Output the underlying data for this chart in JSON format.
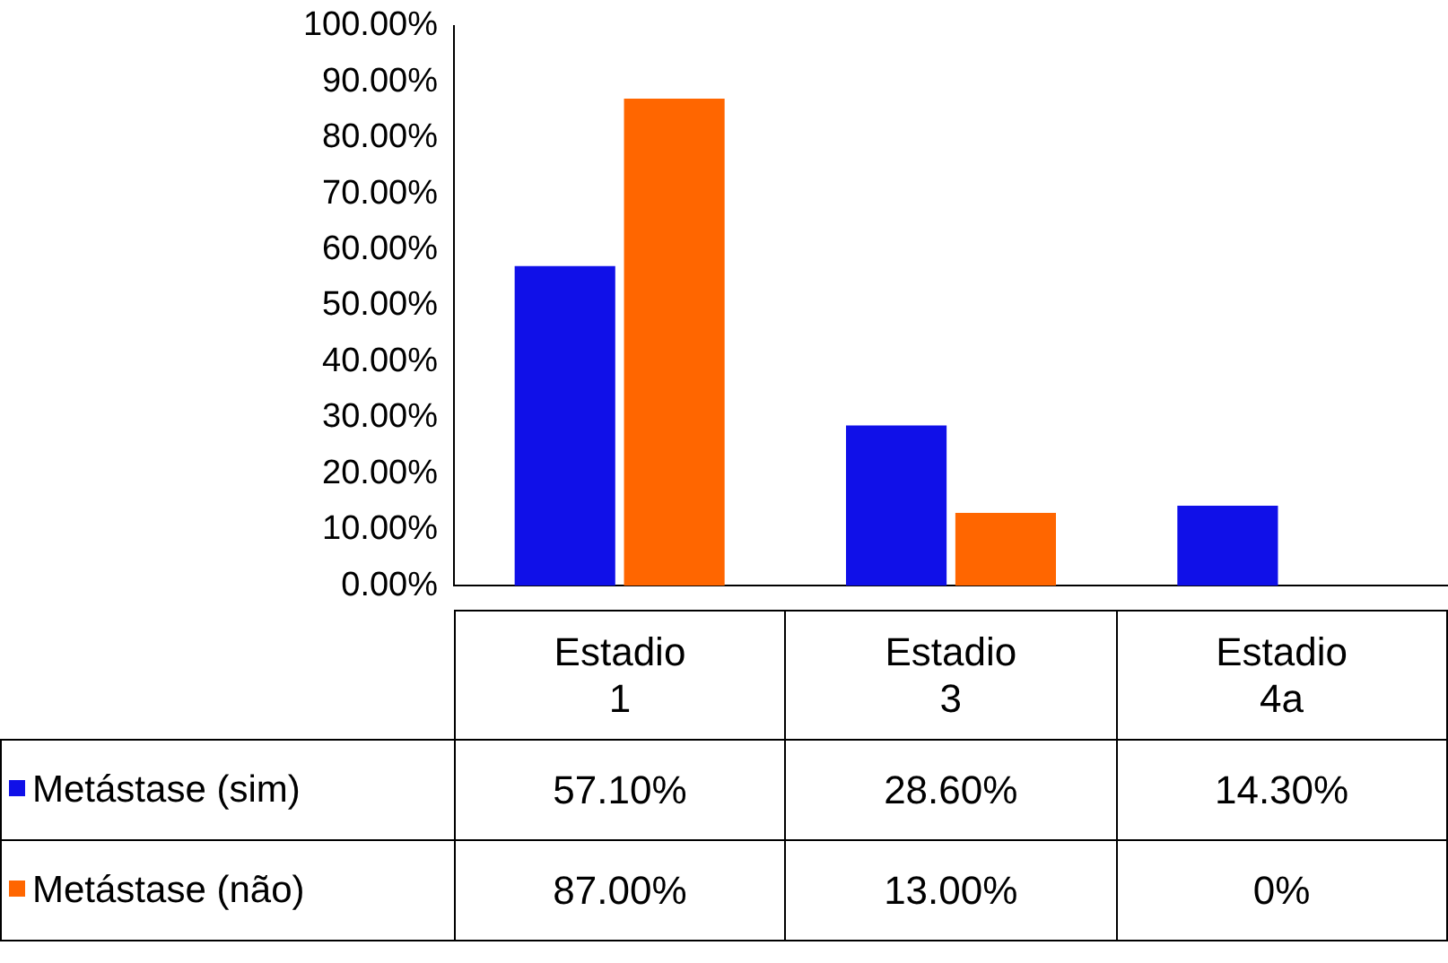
{
  "chart_data": {
    "type": "bar",
    "categories": [
      "Estadio 1",
      "Estadio 3",
      "Estadio 4a"
    ],
    "series": [
      {
        "name": "Metástase (sim)",
        "color": "#1010e8",
        "values": [
          57.1,
          28.6,
          14.3
        ],
        "value_labels": [
          "57.10%",
          "28.60%",
          "14.30%"
        ]
      },
      {
        "name": "Metástase (não)",
        "color": "#ff6600",
        "values": [
          87,
          13,
          0
        ],
        "value_labels": [
          "87.00%",
          "13.00%",
          "0%"
        ]
      }
    ],
    "ylim": [
      0,
      100
    ],
    "yticks": [
      {
        "value": 0,
        "label": "0.00%"
      },
      {
        "value": 10,
        "label": "10.00%"
      },
      {
        "value": 20,
        "label": "20.00%"
      },
      {
        "value": 30,
        "label": "30.00%"
      },
      {
        "value": 40,
        "label": "40.00%"
      },
      {
        "value": 50,
        "label": "50.00%"
      },
      {
        "value": 60,
        "label": "60.00%"
      },
      {
        "value": 70,
        "label": "70.00%"
      },
      {
        "value": 80,
        "label": "80.00%"
      },
      {
        "value": 90,
        "label": "90.00%"
      },
      {
        "value": 100,
        "label": "100.00%"
      }
    ],
    "grid": false,
    "legend": "bottom left"
  }
}
